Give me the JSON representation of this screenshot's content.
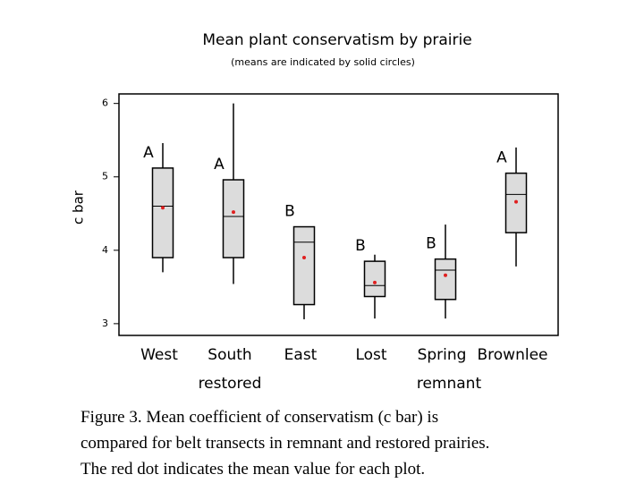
{
  "chart_data": {
    "type": "box",
    "title": "Mean plant conservatism by prairie",
    "subtitle": "(means are indicated by solid circles)",
    "y_label": "c bar",
    "categories": [
      "West",
      "South",
      "East",
      "Lost",
      "Spring",
      "Brownlee"
    ],
    "group_labels": [
      "restored",
      "remnant"
    ],
    "boxes": [
      {
        "min": 3.7,
        "q1": 3.9,
        "median": 4.6,
        "q3": 5.12,
        "max": 5.46,
        "mean": 4.58,
        "letter": "A"
      },
      {
        "min": 3.54,
        "q1": 3.9,
        "median": 4.46,
        "q3": 4.96,
        "max": 6.0,
        "mean": 4.52,
        "letter": "A"
      },
      {
        "min": 3.06,
        "q1": 3.26,
        "median": 4.11,
        "q3": 4.32,
        "max": 4.32,
        "mean": 3.9,
        "letter": "B"
      },
      {
        "min": 3.07,
        "q1": 3.37,
        "median": 3.52,
        "q3": 3.85,
        "max": 3.94,
        "mean": 3.56,
        "letter": "B"
      },
      {
        "min": 3.07,
        "q1": 3.33,
        "median": 3.73,
        "q3": 3.88,
        "max": 4.35,
        "mean": 3.66,
        "letter": "B"
      },
      {
        "min": 3.78,
        "q1": 4.24,
        "median": 4.76,
        "q3": 5.05,
        "max": 5.4,
        "mean": 4.66,
        "letter": "A"
      }
    ],
    "box_color": "#dcdcdc",
    "mean_color": "#e02020",
    "ylim": [
      2.84,
      6.13
    ],
    "yticks": [
      3,
      4,
      5,
      6
    ],
    "caption": [
      "Figure 3.  Mean coefficient of conservatism (c bar) is",
      "compared for belt transects in remnant and restored prairies.",
      "The red dot indicates the mean value for each plot."
    ]
  }
}
